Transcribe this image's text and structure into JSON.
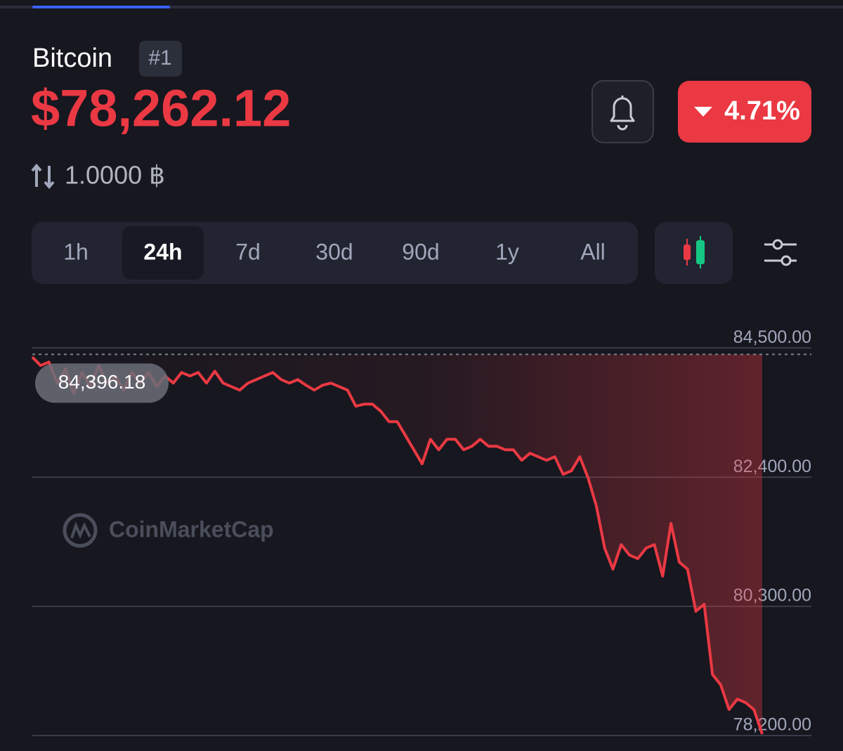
{
  "header": {
    "name": "Bitcoin",
    "rank": "#1",
    "price": "$78,262.12",
    "change": "4.71%",
    "holding": "1.0000 ฿"
  },
  "tabs": [
    "1h",
    "24h",
    "7d",
    "30d",
    "90d",
    "1y",
    "All"
  ],
  "watermark": "CoinMarketCap",
  "chart_data": {
    "type": "line",
    "color": "#ea3943",
    "grid": true,
    "ylim": [
      78200,
      85200
    ],
    "yticks": [
      {
        "value": 84500,
        "label": "84,500.00"
      },
      {
        "value": 82400,
        "label": "82,400.00"
      },
      {
        "value": 80300,
        "label": "80,300.00"
      },
      {
        "value": 78200,
        "label": "78,200.00"
      }
    ],
    "reference": {
      "value": 84396.18,
      "label": "84,396.18"
    },
    "categories": [
      null,
      null,
      null,
      null,
      null,
      null,
      null,
      null,
      null,
      null,
      null,
      null,
      null,
      null,
      null,
      null,
      null,
      null,
      null,
      null,
      null,
      null,
      null,
      null,
      null,
      null,
      null,
      null,
      null,
      null,
      null,
      null,
      null,
      null,
      null,
      null,
      null,
      null,
      null,
      null,
      null,
      null,
      null,
      null,
      null,
      null,
      null,
      null,
      null,
      null,
      null,
      null,
      null,
      null,
      null,
      null,
      null,
      null,
      null,
      null,
      null,
      null,
      null,
      null,
      null,
      null,
      null,
      null,
      null,
      null,
      null,
      null,
      null,
      null,
      null,
      null,
      null,
      null,
      null,
      null,
      null,
      null,
      null,
      null,
      null,
      null,
      null,
      null,
      null
    ],
    "values": [
      84352,
      84215,
      84272,
      83929,
      84158,
      83758,
      84101,
      83872,
      84215,
      83929,
      84044,
      83815,
      84101,
      83929,
      84101,
      83872,
      84044,
      83929,
      84101,
      84044,
      84101,
      83929,
      84123,
      83929,
      83872,
      83815,
      83929,
      83986,
      84044,
      84101,
      83986,
      83929,
      83986,
      83895,
      83815,
      83895,
      83929,
      83872,
      83815,
      83553,
      83587,
      83587,
      83473,
      83302,
      83302,
      83073,
      82845,
      82617,
      83016,
      82845,
      83016,
      83016,
      82845,
      82902,
      83016,
      82902,
      82902,
      82845,
      82845,
      82674,
      82788,
      82731,
      82674,
      82731,
      82446,
      82503,
      82731,
      82389,
      81932,
      81247,
      80905,
      81304,
      81133,
      81076,
      81247,
      81304,
      80791,
      81647,
      81019,
      80905,
      80220,
      80334,
      79193,
      79022,
      78622,
      78793,
      78736,
      78622,
      78223
    ]
  }
}
